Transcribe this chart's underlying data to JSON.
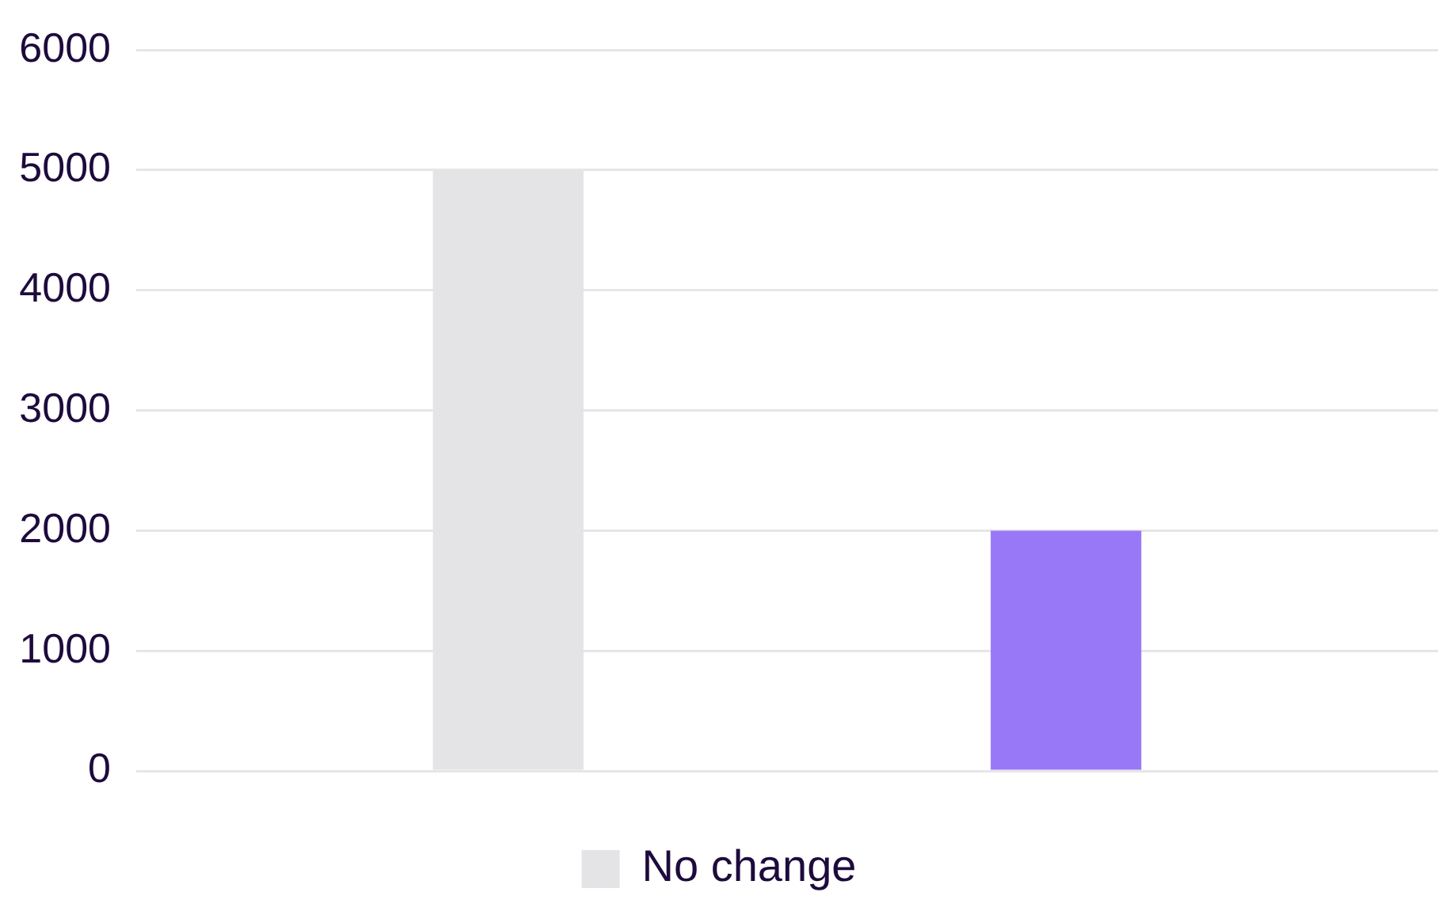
{
  "chart_data": {
    "type": "bar",
    "categories": [
      null
    ],
    "series": [
      {
        "name": "No change",
        "color": "#e4e4e6",
        "values": [
          5000
        ]
      },
      {
        "color": "#9878f6",
        "values": [
          2000
        ]
      }
    ],
    "ylim": [
      0,
      6000
    ],
    "yticks": [
      0,
      1000,
      2000,
      3000,
      4000,
      5000,
      6000
    ],
    "grid": "y",
    "legend": "bottom",
    "tick_labels": "y"
  }
}
